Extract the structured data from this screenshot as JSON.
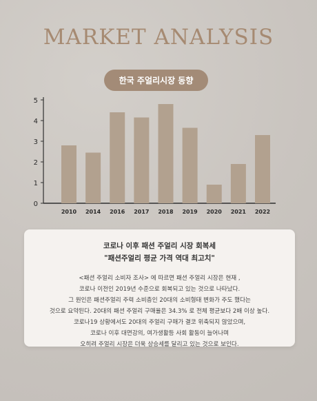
{
  "header": {
    "title": "MARKET ANALYSIS"
  },
  "badge": {
    "label": "한국 주얼리시장 동향"
  },
  "chart_data": {
    "type": "bar",
    "categories": [
      "2010",
      "2014",
      "2016",
      "2017",
      "2018",
      "2019",
      "2020",
      "2021",
      "2022"
    ],
    "values": [
      2.8,
      2.45,
      4.4,
      4.15,
      4.8,
      3.65,
      0.9,
      1.9,
      3.3
    ],
    "yticks": [
      "0",
      "1",
      "2",
      "3",
      "4",
      "5"
    ],
    "ylim": [
      0,
      5
    ],
    "grid": false,
    "bar_color": "#b2a18f",
    "title": "",
    "xlabel": "",
    "ylabel": ""
  },
  "card": {
    "title": "코로나 이후 패션 주얼리 시장 회복세",
    "subtitle": "\"패션주얼리 평균 가격 역대 최고치\"",
    "lines": [
      "<패션 주얼리 소비자 조사> 에 따르면 패션 주얼리 시장은 현재 ,",
      "코로나 이전인 2019년 수준으로 회복되고 있는 것으로 나타났다.",
      "그 원인은 패션주얼리 주력 소비층인 20대의 소비형태 변화가 주도 했다는",
      "것으로 요약된다. 20대의 패션 주얼리 구매율은 34.3% 로 전체 평균보다 2배 이상 높다.",
      "코로나19 상황에서도 20대의 주얼리 구매가 결코 위축되지 않았으며,",
      "코로나 이후 대면강의, 여가생활등 사회 활동이 늘어나며",
      "오히려 주얼리 시장은 더욱 상승세를 달리고 있는 것으로 보인다."
    ]
  }
}
